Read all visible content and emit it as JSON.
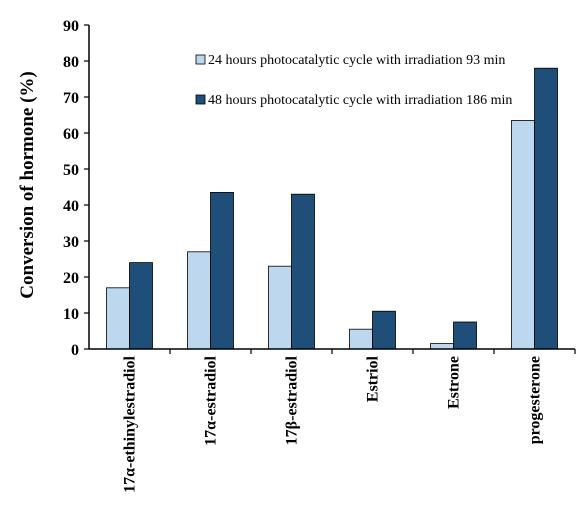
{
  "chart_data": {
    "type": "bar",
    "ylabel": "Conversion of hormone (%)",
    "xlabel": "",
    "ylim": [
      0,
      90
    ],
    "yticks": [
      0,
      10,
      20,
      30,
      40,
      50,
      60,
      70,
      80,
      90
    ],
    "categories": [
      "17α-ethinylestradiol",
      "17α-estradiol",
      "17β-estradiol",
      "Estriol",
      "Estrone",
      "progesterone"
    ],
    "series": [
      {
        "name": "24 hours photocatalytic cycle with irradiation 93 min",
        "color": "#bdd7ee",
        "values": [
          17,
          27,
          23,
          5.5,
          1.5,
          63.5
        ]
      },
      {
        "name": "48 hours photocatalytic cycle with irradiation 186 min",
        "color": "#1f4e79",
        "values": [
          24,
          43.5,
          43,
          10.5,
          7.5,
          78
        ]
      }
    ],
    "legend_position": "top-right",
    "grid": false
  }
}
